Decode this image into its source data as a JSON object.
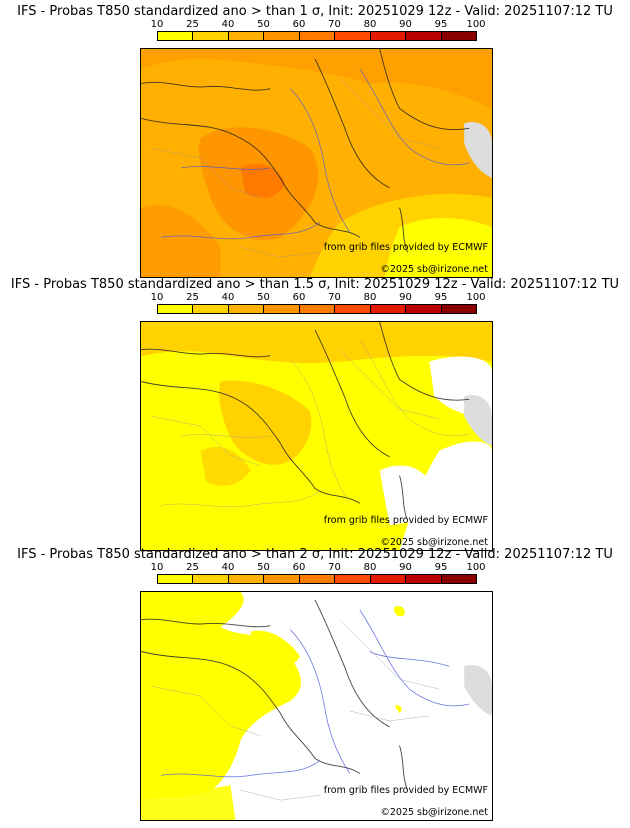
{
  "colorscale": {
    "labels": [
      "10",
      "25",
      "40",
      "50",
      "60",
      "70",
      "80",
      "90",
      "95",
      "100"
    ],
    "colors": [
      "#ffff00",
      "#ffd200",
      "#ffb000",
      "#ff9600",
      "#ff7a00",
      "#ff4a00",
      "#e11a00",
      "#b80000",
      "#8a0000",
      "#4a0000"
    ]
  },
  "panels": [
    {
      "title": "IFS - Probas T850  standardized ano > than 1 σ, Init: 20251029 12z - Valid: 20251107:12 TU",
      "fill_level_icon": "map-fill-high",
      "source_credit": "from grib files provided by ECMWF",
      "copyright": "©2025 sb@irizone.net"
    },
    {
      "title": "IFS - Probas T850  standardized ano > than 1.5 σ, Init: 20251029 12z - Valid: 20251107:12 TU",
      "fill_level_icon": "map-fill-medium",
      "source_credit": "from grib files provided by ECMWF",
      "copyright": "©2025 sb@irizone.net"
    },
    {
      "title": "IFS - Probas T850  standardized ano > than 2 σ, Init: 20251029 12z - Valid: 20251107:12 TU",
      "fill_level_icon": "map-fill-low",
      "source_credit": "from grib files provided by ECMWF",
      "copyright": "©2025 sb@irizone.net"
    }
  ]
}
